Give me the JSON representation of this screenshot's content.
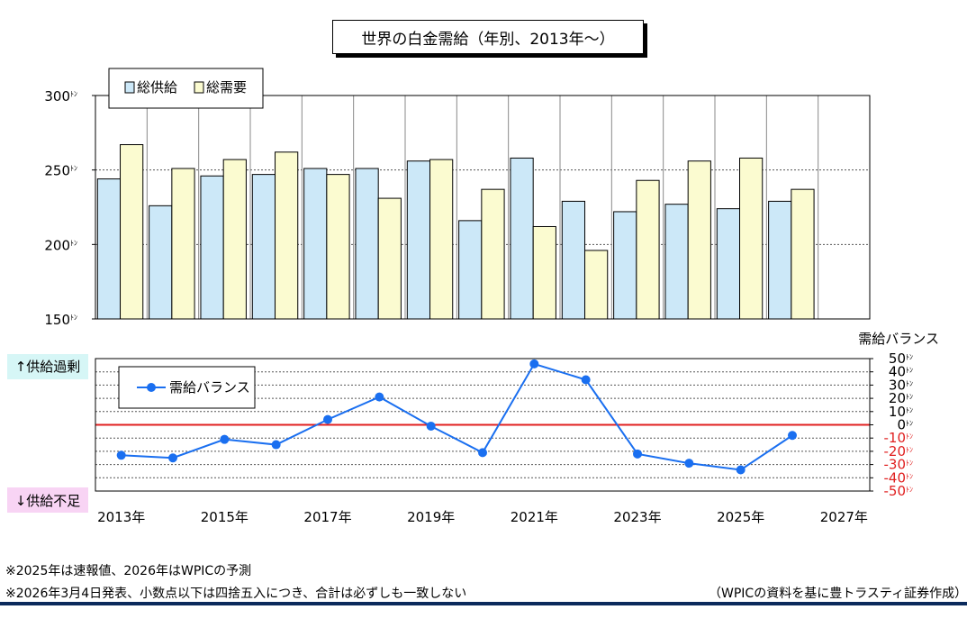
{
  "title": "世界の白金需給（年別、2013年～）",
  "colors": {
    "supply": "#cce8f8",
    "demand": "#fbfbd0",
    "balance_line": "#1a6ff0",
    "zero_line": "#e02020",
    "negative_tick": "#e02020",
    "surplus_bg": "#d6f6f6",
    "deficit_bg": "#f8d4f4"
  },
  "labels": {
    "surplus": "↑供給過剰",
    "deficit": "↓供給不足",
    "balance_axis_title": "需給バランス"
  },
  "notes": {
    "note1": "※2025年は速報値、2026年はWPICの予測",
    "note2": "※2026年3月4日発表、小数点以下は四捨五入につき、合計は必ずしも一致しない",
    "source": "（WPICの資料を基に豊トラスティ証券作成）"
  },
  "chart_data": [
    {
      "type": "bar",
      "categories": [
        "2013年",
        "2014年",
        "2015年",
        "2016年",
        "2017年",
        "2018年",
        "2019年",
        "2020年",
        "2021年",
        "2022年",
        "2023年",
        "2024年",
        "2025年",
        "2026年",
        "2027年"
      ],
      "series": [
        {
          "name": "総供給",
          "values": [
            244,
            226,
            246,
            247,
            251,
            251,
            256,
            216,
            258,
            229,
            222,
            227,
            224,
            229,
            null
          ]
        },
        {
          "name": "総需要",
          "values": [
            267,
            251,
            257,
            262,
            247,
            231,
            257,
            237,
            212,
            196,
            243,
            256,
            258,
            237,
            null
          ]
        }
      ],
      "ylim": [
        150,
        300
      ],
      "yticks": [
        150,
        200,
        250,
        300
      ],
      "tick_labels": [
        "150",
        "200",
        "250",
        "300"
      ],
      "tick_unit": "ﾄﾝ",
      "legend_position": "top-left",
      "grid": true
    },
    {
      "type": "line",
      "categories": [
        "2013年",
        "2014年",
        "2015年",
        "2016年",
        "2017年",
        "2018年",
        "2019年",
        "2020年",
        "2021年",
        "2022年",
        "2023年",
        "2024年",
        "2025年",
        "2026年",
        "2027年"
      ],
      "x_tick_labels": [
        "2013年",
        "2015年",
        "2017年",
        "2019年",
        "2021年",
        "2023年",
        "2025年",
        "2027年"
      ],
      "series": [
        {
          "name": "需給バランス",
          "values": [
            -23,
            -25,
            -11,
            -15,
            4,
            21,
            -1,
            -21,
            46,
            34,
            -22,
            -29,
            -34,
            -8,
            null
          ]
        }
      ],
      "ylim": [
        -50,
        50
      ],
      "yticks": [
        50,
        40,
        30,
        20,
        10,
        0,
        -10,
        -20,
        -30,
        -40,
        -50
      ],
      "tick_labels": [
        "50",
        "40",
        "30",
        "20",
        "10",
        "0",
        "-10",
        "-20",
        "-30",
        "-40",
        "-50"
      ],
      "tick_unit": "ﾄﾝ",
      "legend_position": "top-left",
      "grid": true
    }
  ]
}
